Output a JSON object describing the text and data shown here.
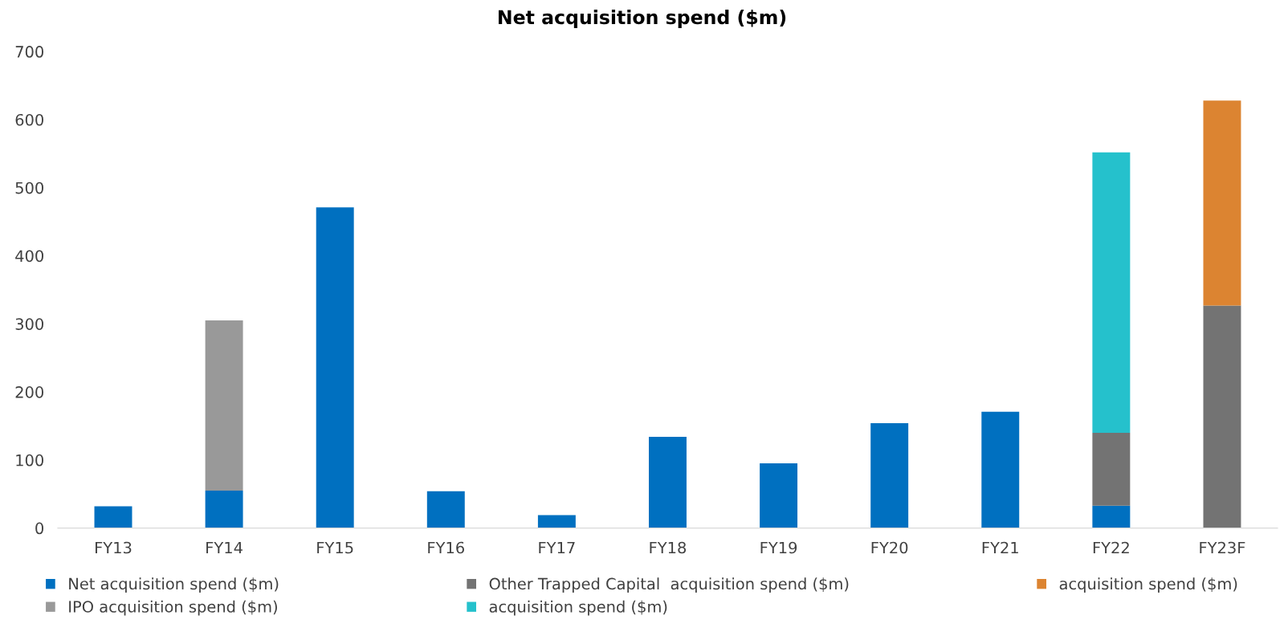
{
  "chart_data": {
    "type": "bar",
    "title": "Net acquisition spend ($m)",
    "stacked": true,
    "categories": [
      "FY13",
      "FY14",
      "FY15",
      "FY16",
      "FY17",
      "FY18",
      "FY19",
      "FY20",
      "FY21",
      "FY22",
      "FY23F"
    ],
    "series": [
      {
        "name": "Net acquisition spend ($m)",
        "color": "#0070c0",
        "values": [
          32,
          55,
          471,
          54,
          19,
          134,
          95,
          154,
          171,
          33,
          null
        ]
      },
      {
        "name": "IPO acquisition spend ($m)",
        "color": "#999999",
        "values": [
          null,
          250,
          null,
          null,
          null,
          null,
          null,
          null,
          null,
          null,
          null
        ]
      },
      {
        "name": "Other Trapped Capital  acquisition spend ($m)",
        "color": "#737373",
        "values": [
          null,
          null,
          null,
          null,
          null,
          null,
          null,
          null,
          null,
          107,
          327
        ]
      },
      {
        "name": "acquisition spend ($m)",
        "color": "#25c1cc",
        "values": [
          null,
          null,
          null,
          null,
          null,
          null,
          null,
          null,
          null,
          412,
          null
        ]
      },
      {
        "name": "acquisition spend ($m)",
        "color": "#dc8431",
        "values": [
          null,
          null,
          null,
          null,
          null,
          null,
          null,
          null,
          null,
          null,
          301
        ]
      }
    ],
    "ylim": [
      0,
      700
    ],
    "yticks": [
      0,
      100,
      200,
      300,
      400,
      500,
      600,
      700
    ],
    "grid": false,
    "legend": "bottom"
  }
}
